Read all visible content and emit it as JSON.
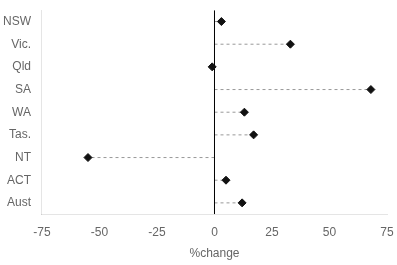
{
  "chart_data": {
    "type": "lollipop",
    "orientation": "horizontal",
    "categories": [
      "NSW",
      "Vic.",
      "Qld",
      "SA",
      "WA",
      "Tas.",
      "NT",
      "ACT",
      "Aust"
    ],
    "values": [
      3,
      33,
      -1,
      68,
      13,
      17,
      -55,
      5,
      12
    ],
    "xlabel": "%change",
    "xlim": [
      -75,
      75
    ],
    "xticks": [
      -75,
      -50,
      -25,
      0,
      25,
      50,
      75
    ],
    "grid": false,
    "marker": "diamond",
    "line_style": "dashed",
    "color": "#111111"
  }
}
